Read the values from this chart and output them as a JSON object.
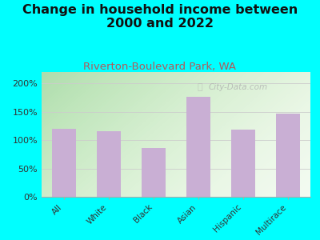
{
  "title": "Change in household income between\n2000 and 2022",
  "subtitle": "Riverton-Boulevard Park, WA",
  "categories": [
    "All",
    "White",
    "Black",
    "Asian",
    "Hispanic",
    "Multirace"
  ],
  "values": [
    120,
    116,
    86,
    176,
    119,
    146
  ],
  "bar_color": "#c9afd4",
  "background_outer": "#00ffff",
  "title_fontsize": 11.5,
  "title_color": "#111111",
  "subtitle_fontsize": 9.5,
  "subtitle_color": "#b05a5a",
  "tick_label_color": "#333333",
  "watermark": "City-Data.com",
  "ylim": [
    0,
    220
  ],
  "yticks": [
    0,
    50,
    100,
    150,
    200
  ],
  "grid_color": "#cccccc"
}
